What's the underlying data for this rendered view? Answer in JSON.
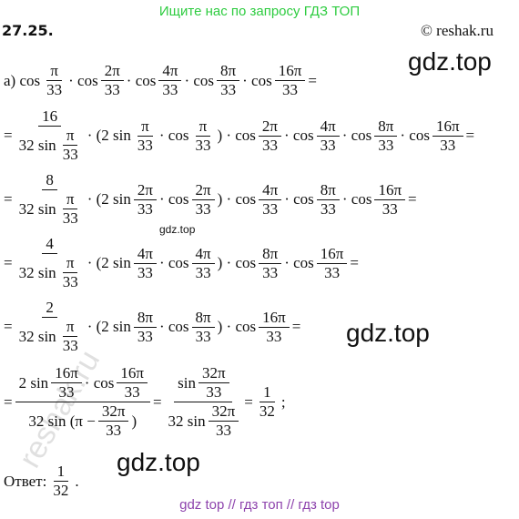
{
  "header": {
    "banner": "Ищите нас по запросу ГДЗ ТОП",
    "problem": "27.25.",
    "copyright": "© reshak.ru"
  },
  "watermarks": {
    "big1": "gdz.top",
    "small": "gdz.top",
    "big2": "gdz.top",
    "big3": "gdz.top",
    "rotated": "reshak.ru"
  },
  "lines": [
    [
      "а) cos",
      {
        "n": "π",
        "d": "33"
      },
      "· cos",
      {
        "n": "2π",
        "d": "33"
      },
      "· cos",
      {
        "n": "4π",
        "d": "33"
      },
      "· cos",
      {
        "n": "8π",
        "d": "33"
      },
      "· cos",
      {
        "n": "16π",
        "d": "33"
      },
      "="
    ],
    [
      "=",
      {
        "n": "16",
        "d": [
          "32 sin",
          {
            "n": "π",
            "d": "33"
          }
        ]
      },
      "· (2 sin",
      {
        "n": "π",
        "d": "33"
      },
      "· cos",
      {
        "n": "π",
        "d": "33"
      },
      ") · cos",
      {
        "n": "2π",
        "d": "33"
      },
      "· cos",
      {
        "n": "4π",
        "d": "33"
      },
      "· cos",
      {
        "n": "8π",
        "d": "33"
      },
      "· cos",
      {
        "n": "16π",
        "d": "33"
      },
      "="
    ],
    [
      "=",
      {
        "n": "8",
        "d": [
          "32 sin",
          {
            "n": "π",
            "d": "33"
          }
        ]
      },
      "· (2 sin",
      {
        "n": "2π",
        "d": "33"
      },
      "· cos",
      {
        "n": "2π",
        "d": "33"
      },
      ") · cos",
      {
        "n": "4π",
        "d": "33"
      },
      "· cos",
      {
        "n": "8π",
        "d": "33"
      },
      "· cos",
      {
        "n": "16π",
        "d": "33"
      },
      "="
    ],
    [
      "=",
      {
        "n": "4",
        "d": [
          "32 sin",
          {
            "n": "π",
            "d": "33"
          }
        ]
      },
      "· (2 sin",
      {
        "n": "4π",
        "d": "33"
      },
      "· cos",
      {
        "n": "4π",
        "d": "33"
      },
      ") · cos",
      {
        "n": "8π",
        "d": "33"
      },
      "· cos",
      {
        "n": "16π",
        "d": "33"
      },
      "="
    ],
    [
      "=",
      {
        "n": "2",
        "d": [
          "32 sin",
          {
            "n": "π",
            "d": "33"
          }
        ]
      },
      "· (2 sin",
      {
        "n": "8π",
        "d": "33"
      },
      "· cos",
      {
        "n": "8π",
        "d": "33"
      },
      ") · cos",
      {
        "n": "16π",
        "d": "33"
      },
      "="
    ],
    [
      "=",
      {
        "n": [
          "2 sin",
          {
            "n": "16π",
            "d": "33"
          },
          "· cos",
          {
            "n": "16π",
            "d": "33"
          }
        ],
        "d": [
          "32 sin (π −",
          {
            "n": "32π",
            "d": "33"
          },
          ")"
        ]
      },
      "=",
      {
        "n": [
          "sin",
          {
            "n": "32π",
            "d": "33"
          }
        ],
        "d": [
          "32 sin",
          {
            "n": "32π",
            "d": "33"
          }
        ]
      },
      "=",
      {
        "n": "1",
        "d": "32"
      },
      ";"
    ]
  ],
  "answer": [
    "Ответ:",
    {
      "n": "1",
      "d": "32"
    },
    "."
  ],
  "footer": "gdz top // гдз топ // гдз top"
}
